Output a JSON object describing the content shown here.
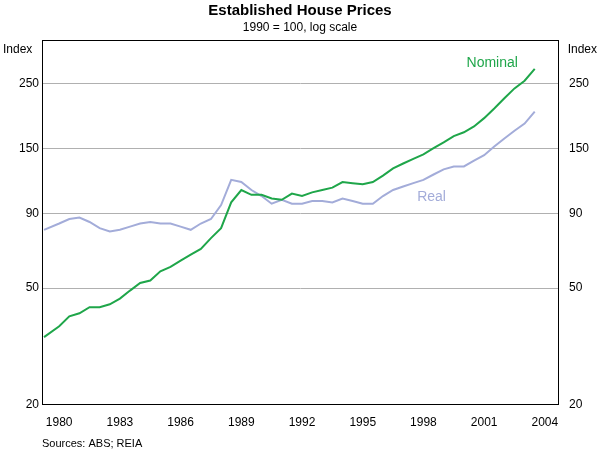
{
  "chart_data": {
    "type": "line",
    "title": "Established House Prices",
    "subtitle": "1990 = 100, log scale",
    "y_label": "Index",
    "source": "Sources: ABS; REIA",
    "log": "y",
    "grid": true,
    "x": [
      1979.25,
      1980,
      1980.5,
      1981,
      1981.5,
      1982,
      1982.5,
      1983,
      1983.5,
      1984,
      1984.5,
      1985,
      1985.5,
      1986,
      1986.5,
      1987,
      1987.5,
      1988,
      1988.5,
      1989,
      1989.5,
      1990,
      1990.5,
      1991,
      1991.5,
      1992,
      1992.5,
      1993,
      1993.5,
      1994,
      1994.5,
      1995,
      1995.5,
      1996,
      1996.5,
      1997,
      1997.5,
      1998,
      1998.5,
      1999,
      1999.5,
      2000,
      2000.5,
      2001,
      2001.5,
      2002,
      2002.5,
      2003,
      2003.5
    ],
    "xlim": [
      1979.15,
      2004.65
    ],
    "xticks": [
      1980,
      1983,
      1986,
      1989,
      1992,
      1995,
      1998,
      2001,
      2004
    ],
    "ylim": [
      20,
      350
    ],
    "yticks": [
      20,
      50,
      90,
      150,
      250
    ],
    "y2lim": [
      20,
      350
    ],
    "y2ticks": [
      20,
      50,
      90,
      150,
      250
    ],
    "series": [
      {
        "name": "Nominal",
        "color": "#1fa64a",
        "values": [
          34,
          37,
          40,
          41,
          43,
          43,
          44,
          46,
          49,
          52,
          53,
          57,
          59,
          62,
          65,
          68,
          74,
          80,
          98,
          108,
          104,
          104,
          101,
          100,
          105,
          103,
          106,
          108,
          110,
          115,
          114,
          113,
          115,
          121,
          128,
          133,
          138,
          143,
          150,
          157,
          165,
          170,
          178,
          190,
          205,
          222,
          240,
          255,
          280
        ]
      },
      {
        "name": "Real",
        "color": "#a3acd9",
        "values": [
          79,
          83,
          86,
          87,
          84,
          80,
          78,
          79,
          81,
          83,
          84,
          83,
          83,
          81,
          79,
          83,
          86,
          96,
          117,
          115,
          108,
          103,
          97,
          100,
          97,
          97,
          99,
          99,
          98,
          101,
          99,
          97,
          97,
          103,
          108,
          111,
          114,
          117,
          122,
          127,
          130,
          130,
          136,
          142,
          152,
          162,
          172,
          182,
          200
        ]
      }
    ],
    "annotations": [
      {
        "text": "Nominal",
        "x": 2001.4,
        "y": 293,
        "color": "#1fa64a"
      },
      {
        "text": "Real",
        "x": 1998.4,
        "y": 102,
        "color": "#a3acd9"
      }
    ]
  }
}
